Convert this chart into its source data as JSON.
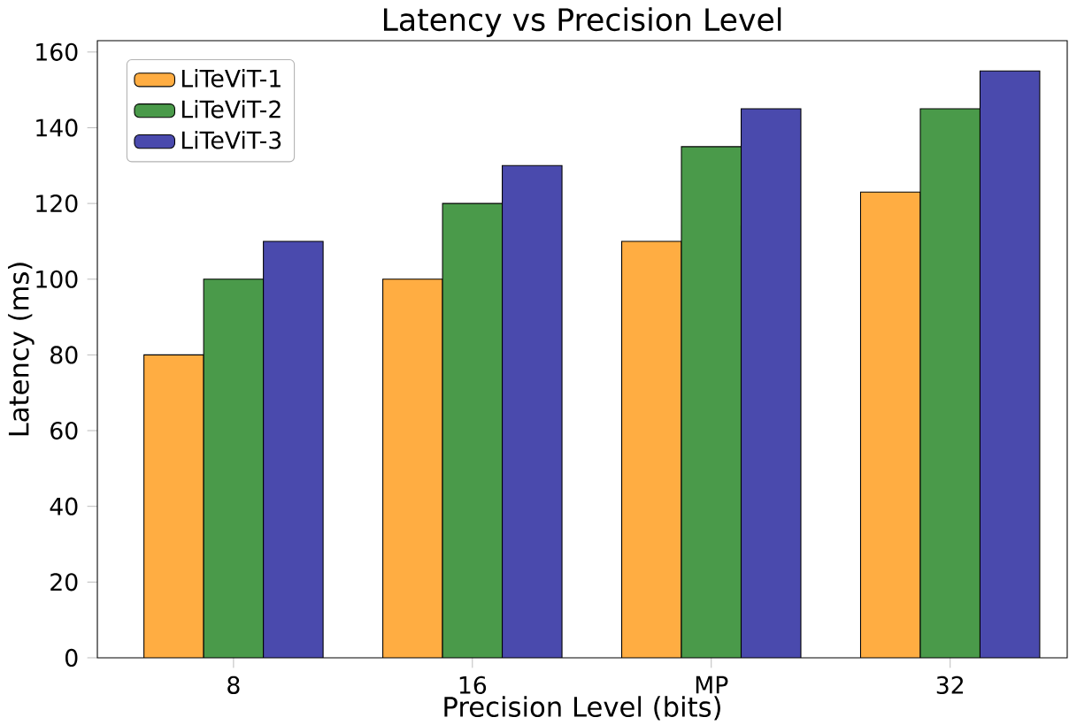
{
  "chart_data": {
    "type": "bar",
    "title": "Latency vs Precision Level",
    "xlabel": "Precision Level (bits)",
    "ylabel": "Latency (ms)",
    "categories": [
      "8",
      "16",
      "MP",
      "32"
    ],
    "series": [
      {
        "name": "LiTeViT-1",
        "color": "#ffad42",
        "values": [
          80,
          100,
          110,
          123
        ]
      },
      {
        "name": "LiTeViT-2",
        "color": "#4a9a4a",
        "values": [
          100,
          120,
          135,
          145
        ]
      },
      {
        "name": "LiTeViT-3",
        "color": "#4a4aad",
        "values": [
          110,
          130,
          145,
          155
        ]
      }
    ],
    "ylim": [
      0,
      163
    ],
    "yticks": [
      0,
      20,
      40,
      60,
      80,
      100,
      120,
      140,
      160
    ],
    "legend": "top left"
  }
}
